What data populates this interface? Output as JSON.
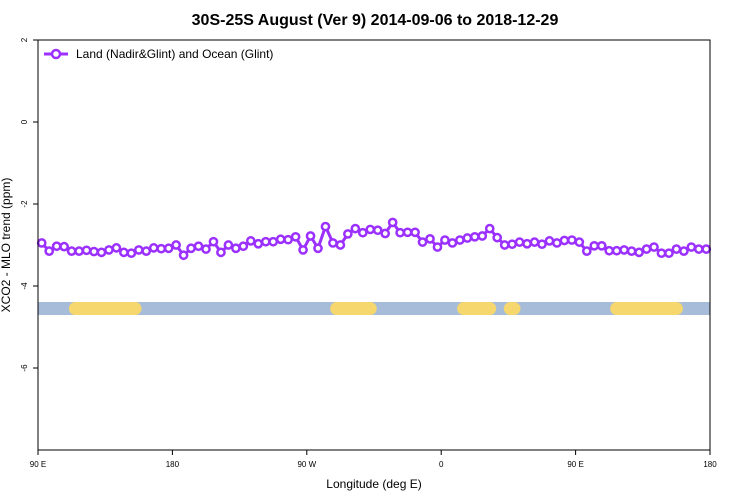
{
  "chart_data": {
    "type": "line",
    "title": "30S-25S August (Ver 9)   2014-09-06 to 2018-12-29",
    "xlabel": "Longitude (deg E)",
    "ylabel": "XCO2 - MLO trend (ppm)",
    "xlim": [
      90,
      450
    ],
    "ylim": [
      -8,
      2
    ],
    "x_ticks": [
      {
        "value": 90,
        "label": "90 E"
      },
      {
        "value": 162,
        "label": "180"
      },
      {
        "value": 234,
        "label": "90 W"
      },
      {
        "value": 306,
        "label": "0"
      },
      {
        "value": 378,
        "label": "90 E"
      },
      {
        "value": 450,
        "label": "180"
      }
    ],
    "y_ticks": [
      {
        "value": 2,
        "label": "2"
      },
      {
        "value": 0,
        "label": "0"
      },
      {
        "value": -2,
        "label": "-2"
      },
      {
        "value": -4,
        "label": "-4"
      },
      {
        "value": -6,
        "label": "-6"
      }
    ],
    "grid": false,
    "legend_position": "top-left",
    "series": [
      {
        "name": "Land (Nadir&Glint) and Ocean (Glint)",
        "color": "#9b30ff",
        "x": [
          92,
          96,
          100,
          104,
          108,
          112,
          116,
          120,
          124,
          128,
          132,
          136,
          140,
          144,
          148,
          152,
          156,
          160,
          164,
          168,
          172,
          176,
          180,
          184,
          188,
          192,
          196,
          200,
          204,
          208,
          212,
          216,
          220,
          224,
          228,
          232,
          236,
          240,
          244,
          248,
          252,
          256,
          260,
          264,
          268,
          272,
          276,
          280,
          284,
          288,
          292,
          296,
          300,
          304,
          308,
          312,
          316,
          320,
          324,
          328,
          332,
          336,
          340,
          344,
          348,
          352,
          356,
          360,
          364,
          368,
          372,
          376,
          380,
          384,
          388,
          392,
          396,
          400,
          404,
          408,
          412,
          416,
          420,
          424,
          428,
          432,
          436,
          440,
          444,
          448
        ],
        "y": [
          -2.95,
          -3.15,
          -3.03,
          -3.04,
          -3.15,
          -3.15,
          -3.13,
          -3.16,
          -3.18,
          -3.12,
          -3.07,
          -3.18,
          -3.2,
          -3.12,
          -3.15,
          -3.07,
          -3.09,
          -3.08,
          -3.0,
          -3.25,
          -3.08,
          -3.03,
          -3.1,
          -2.92,
          -3.18,
          -3.0,
          -3.08,
          -3.03,
          -2.9,
          -2.97,
          -2.92,
          -2.92,
          -2.86,
          -2.87,
          -2.8,
          -3.12,
          -2.78,
          -3.08,
          -2.55,
          -2.95,
          -3.0,
          -2.73,
          -2.6,
          -2.7,
          -2.62,
          -2.64,
          -2.72,
          -2.45,
          -2.7,
          -2.69,
          -2.69,
          -2.93,
          -2.85,
          -3.05,
          -2.88,
          -2.95,
          -2.88,
          -2.83,
          -2.8,
          -2.78,
          -2.6,
          -2.82,
          -3.0,
          -2.98,
          -2.93,
          -2.97,
          -2.93,
          -2.98,
          -2.9,
          -2.95,
          -2.89,
          -2.88,
          -2.93,
          -3.15,
          -3.02,
          -3.02,
          -3.14,
          -3.14,
          -3.12,
          -3.15,
          -3.18,
          -3.1,
          -3.05,
          -3.2,
          -3.2,
          -3.1,
          -3.15,
          -3.05,
          -3.1,
          -3.1
        ]
      }
    ],
    "surface_bar": {
      "y": -4.55,
      "colors": {
        "ocean": "#a7bcd8",
        "land": "#f5d76e"
      },
      "land_segments": [
        [
          110,
          142
        ],
        [
          250,
          268
        ],
        [
          318,
          332
        ],
        [
          343,
          345
        ],
        [
          400,
          432
        ]
      ]
    }
  }
}
